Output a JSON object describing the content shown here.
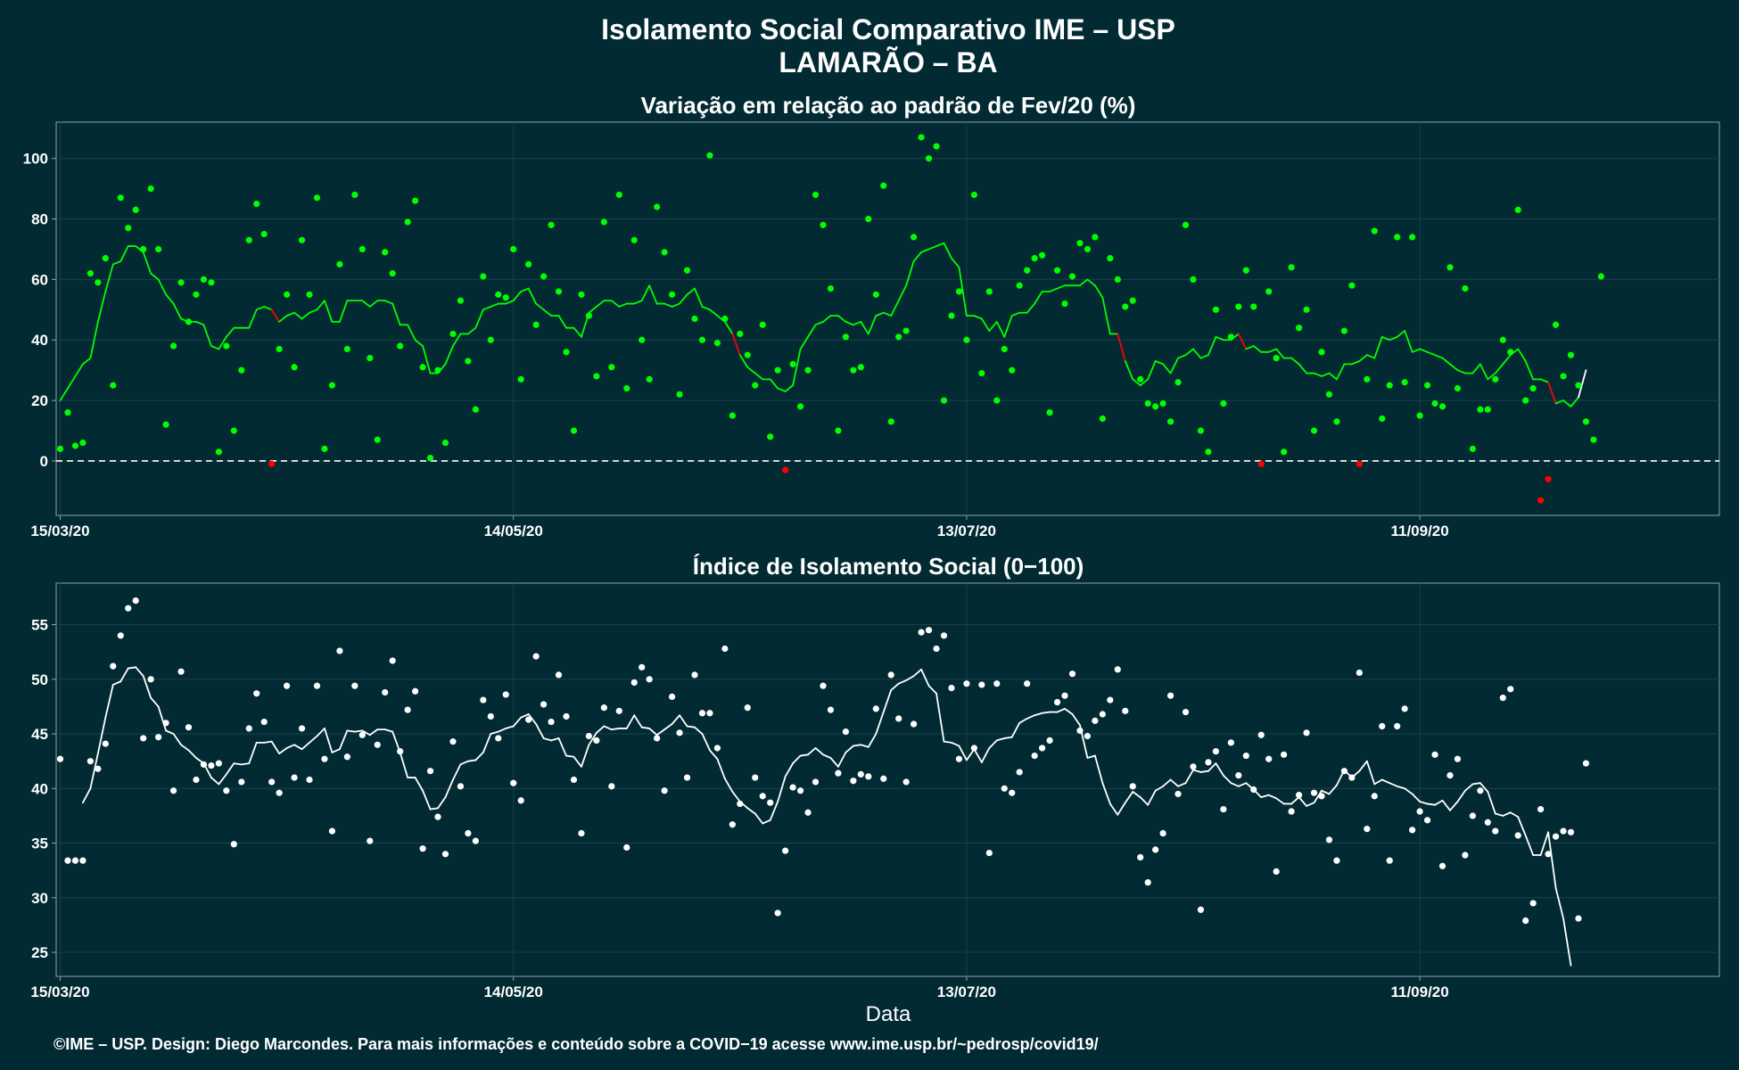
{
  "title_line1": "Isolamento Social Comparativo IME – USP",
  "title_line2": "LAMARÃO – BA",
  "xlabel": "Data",
  "footer": "©IME – USP. Design: Diego Marcondes. Para mais informações e conteúdo sobre a COVID−19 acesse www.ime.usp.br/~pedrosp/covid19/",
  "colors": {
    "background": "#022a33",
    "positive": "#00ff00",
    "negative": "#ff0000",
    "index": "#ffffff",
    "frame": "#8fa3a8"
  },
  "chart_data": [
    {
      "type": "scatter",
      "title": "Variação em relação ao padrão de Fev/20 (%)",
      "xlabel": "Data",
      "ylabel": "",
      "x_start": "2020-03-15",
      "x_tick_labels": [
        "15/03/20",
        "14/05/20",
        "13/07/20",
        "11/09/20"
      ],
      "y_ticks": [
        "0",
        "20",
        "40",
        "60",
        "80",
        "100"
      ],
      "ylim": [
        -18,
        112
      ],
      "reference_line": 0,
      "grid": true,
      "series": [
        {
          "kind": "points",
          "values": [
            4,
            16,
            5,
            6,
            62,
            59,
            67,
            25,
            87,
            77,
            83,
            70,
            90,
            70,
            12,
            38,
            59,
            46,
            55,
            60,
            59,
            3,
            38,
            10,
            30,
            73,
            85,
            75,
            -1,
            37,
            55,
            31,
            73,
            55,
            87,
            4,
            25,
            65,
            37,
            88,
            70,
            34,
            7,
            69,
            62,
            38,
            79,
            86,
            31,
            1,
            30,
            6,
            42,
            53,
            33,
            17,
            61,
            40,
            55,
            54,
            70,
            27,
            65,
            45,
            61,
            78,
            56,
            36,
            10,
            55,
            48,
            28,
            79,
            31,
            88,
            24,
            73,
            40,
            27,
            84,
            69,
            55,
            22,
            63,
            47,
            40,
            101,
            39,
            47,
            15,
            42,
            35,
            25,
            45,
            8,
            30,
            -3,
            32,
            18,
            30,
            88,
            78,
            57,
            10,
            41,
            30,
            31,
            80,
            55,
            91,
            13,
            41,
            43,
            74,
            107,
            100,
            104,
            20,
            48,
            56,
            40,
            88,
            29,
            56,
            20,
            37,
            30,
            58,
            63,
            67,
            68,
            16,
            63,
            52,
            61,
            72,
            70,
            74,
            14,
            67,
            60,
            51,
            53,
            27,
            19,
            18,
            19,
            13,
            26,
            78,
            60,
            10,
            3,
            50,
            19,
            41,
            51,
            63,
            51,
            -1,
            56,
            34,
            3,
            64,
            44,
            50,
            10,
            36,
            22,
            13,
            43,
            58,
            -1,
            27,
            76,
            14,
            25,
            74,
            26,
            74,
            15,
            25,
            19,
            18,
            64,
            24,
            57,
            4,
            17,
            17,
            27,
            40,
            36,
            83,
            20,
            24,
            -13,
            -6,
            45,
            28,
            35,
            25,
            13,
            7,
            61
          ]
        },
        {
          "kind": "moving-average",
          "x_offset": 0,
          "values": [
            20,
            24,
            28,
            32,
            34,
            46,
            56,
            65,
            66,
            71,
            71,
            69,
            62,
            60,
            55,
            52,
            47,
            46,
            46,
            45,
            38,
            37,
            41,
            44,
            44,
            44,
            50,
            51,
            50,
            46,
            48,
            49,
            47,
            49,
            50,
            53,
            46,
            46,
            53,
            53,
            53,
            51,
            53,
            53,
            52,
            45,
            45,
            40,
            38,
            29,
            29,
            32,
            38,
            42,
            42,
            44,
            50,
            51,
            52,
            52,
            53,
            56,
            57,
            52,
            50,
            48,
            48,
            44,
            44,
            41,
            49,
            51,
            53,
            53,
            51,
            52,
            52,
            53,
            58,
            52,
            52,
            51,
            52,
            55,
            57,
            51,
            50,
            48,
            46,
            42,
            35,
            31,
            29,
            27,
            27,
            24,
            23,
            25,
            37,
            41,
            45,
            46,
            48,
            48,
            46,
            45,
            46,
            42,
            48,
            49,
            48,
            53,
            58,
            66,
            69,
            70,
            71,
            72,
            67,
            64,
            48,
            48,
            47,
            43,
            46,
            41,
            48,
            49,
            49,
            52,
            56,
            56,
            57,
            58,
            58,
            58,
            60,
            58,
            54,
            42,
            42,
            33,
            27,
            25,
            27,
            33,
            32,
            29,
            34,
            35,
            37,
            34,
            35,
            41,
            40,
            40,
            42,
            37,
            38,
            36,
            36,
            37,
            34,
            34,
            32,
            29,
            29,
            28,
            29,
            27,
            32,
            32,
            33,
            35,
            34,
            41,
            40,
            41,
            43,
            36,
            37,
            36,
            35,
            34,
            32,
            30,
            29,
            29,
            32,
            27,
            29,
            32,
            35,
            37,
            33,
            27,
            27,
            26,
            19,
            20,
            18,
            21,
            30
          ]
        }
      ]
    },
    {
      "type": "scatter",
      "title": "Índice de Isolamento Social (0−100)",
      "xlabel": "Data",
      "ylabel": "",
      "x_start": "2020-03-15",
      "x_tick_labels": [
        "15/03/20",
        "14/05/20",
        "13/07/20",
        "11/09/20"
      ],
      "y_ticks": [
        "25",
        "30",
        "35",
        "40",
        "45",
        "50",
        "55"
      ],
      "ylim": [
        22.8,
        58.8
      ],
      "grid": true,
      "series": [
        {
          "kind": "points",
          "values": [
            42.7,
            33.4,
            33.4,
            33.4,
            42.5,
            41.8,
            44.1,
            51.2,
            54.0,
            56.5,
            57.2,
            44.6,
            50.0,
            44.7,
            46.0,
            39.8,
            50.7,
            45.6,
            40.8,
            42.2,
            42.1,
            42.3,
            39.8,
            34.9,
            40.6,
            45.5,
            48.7,
            46.1,
            40.6,
            39.6,
            49.4,
            41.0,
            45.5,
            40.8,
            49.4,
            42.7,
            36.1,
            52.6,
            42.9,
            49.4,
            44.9,
            35.2,
            44.0,
            48.8,
            51.7,
            43.4,
            47.2,
            48.9,
            34.5,
            41.6,
            37.4,
            34.0,
            44.3,
            40.2,
            35.9,
            35.2,
            48.1,
            46.6,
            44.6,
            48.6,
            40.5,
            38.9,
            46.3,
            52.1,
            47.7,
            46.1,
            50.4,
            46.6,
            40.8,
            35.9,
            44.8,
            44.4,
            47.4,
            40.2,
            47.1,
            34.6,
            49.7,
            51.1,
            50.0,
            44.6,
            39.8,
            48.4,
            45.1,
            41.0,
            50.4,
            46.9,
            46.9,
            43.7,
            52.8,
            36.7,
            38.6,
            47.4,
            41.0,
            39.3,
            38.7,
            28.6,
            34.3,
            40.1,
            39.8,
            37.8,
            40.6,
            49.4,
            47.2,
            41.4,
            45.2,
            40.7,
            41.3,
            41.1,
            47.3,
            40.9,
            50.4,
            46.4,
            40.6,
            45.9,
            54.3,
            54.5,
            52.8,
            54.0,
            49.2,
            42.7,
            49.6,
            43.7,
            49.5,
            34.1,
            49.6,
            40.0,
            39.6,
            41.5,
            49.6,
            43.0,
            43.7,
            44.4,
            47.9,
            48.5,
            50.5,
            45.3,
            44.8,
            46.2,
            46.8,
            48.1,
            50.9,
            47.1,
            40.2,
            33.7,
            31.4,
            34.4,
            35.9,
            48.5,
            39.5,
            47.0,
            42.0,
            28.9,
            42.4,
            43.4,
            38.1,
            44.2,
            41.2,
            43.0,
            39.9,
            44.9,
            42.7,
            32.4,
            43.1,
            37.9,
            39.4,
            45.1,
            39.6,
            39.3,
            35.3,
            33.4,
            41.6,
            41.0,
            50.6,
            36.3,
            39.3,
            45.7,
            33.4,
            45.7,
            47.3,
            36.2,
            37.9,
            37.1,
            43.1,
            32.9,
            41.2,
            42.7,
            33.9,
            37.5,
            39.8,
            36.9,
            36.1,
            48.3,
            49.1,
            35.7,
            27.9,
            29.5,
            38.1,
            34.0,
            35.6,
            36.1,
            36.0,
            28.1,
            42.3
          ]
        },
        {
          "kind": "moving-average",
          "x_offset": 3,
          "values": [
            38.7,
            40.0,
            43.2,
            46.5,
            49.5,
            49.8,
            51.0,
            51.1,
            50.3,
            48.3,
            47.5,
            45.3,
            45.0,
            44.0,
            43.5,
            42.8,
            42.3,
            41.0,
            40.4,
            41.3,
            42.3,
            42.2,
            42.3,
            44.2,
            44.2,
            44.3,
            43.2,
            43.7,
            44.0,
            43.6,
            44.2,
            44.8,
            45.5,
            43.3,
            43.6,
            45.3,
            45.2,
            45.3,
            44.9,
            45.4,
            45.4,
            45.2,
            43.3,
            41.0,
            41.0,
            39.8,
            38.1,
            38.2,
            39.2,
            40.8,
            42.2,
            42.5,
            42.6,
            43.3,
            45.0,
            45.2,
            45.5,
            45.7,
            46.5,
            46.8,
            45.9,
            44.6,
            44.4,
            44.6,
            43.0,
            42.9,
            42.0,
            44.0,
            45.1,
            45.7,
            45.4,
            45.5,
            45.5,
            46.7,
            45.6,
            45.5,
            44.9,
            45.4,
            45.9,
            46.7,
            45.7,
            45.6,
            45.0,
            43.5,
            42.7,
            40.9,
            39.7,
            38.8,
            38.2,
            37.7,
            36.8,
            37.1,
            38.8,
            41.1,
            42.3,
            43.0,
            43.1,
            43.7,
            43.1,
            42.8,
            42.0,
            43.3,
            43.9,
            44.0,
            43.8,
            45.0,
            47.0,
            49.0,
            49.6,
            49.9,
            50.3,
            50.9,
            49.4,
            48.7,
            44.3,
            44.2,
            43.9,
            42.6,
            43.6,
            42.4,
            43.7,
            44.4,
            44.6,
            44.7,
            46.0,
            46.4,
            46.7,
            46.9,
            47.0,
            47.0,
            47.3,
            46.8,
            45.8,
            42.8,
            43.0,
            40.5,
            38.6,
            37.6,
            38.7,
            39.7,
            39.2,
            38.5,
            39.8,
            40.2,
            40.8,
            40.2,
            40.5,
            41.7,
            41.5,
            41.6,
            42.3,
            41.2,
            40.5,
            40.2,
            40.5,
            39.9,
            39.2,
            39.4,
            39.1,
            38.6,
            38.6,
            39.2,
            38.4,
            38.7,
            39.8,
            39.5,
            40.3,
            41.7,
            41.0,
            41.6,
            42.5,
            40.4,
            40.8,
            40.5,
            40.2,
            40.0,
            39.5,
            38.8,
            38.6,
            38.5,
            38.9,
            38.0,
            38.8,
            39.8,
            40.4,
            40.5,
            39.7,
            37.7,
            37.5,
            37.8,
            37.4,
            35.7,
            33.9,
            33.9,
            36.0,
            30.9,
            28.1,
            23.8
          ]
        }
      ]
    }
  ]
}
